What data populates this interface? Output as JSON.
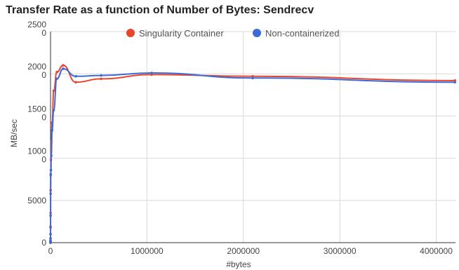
{
  "chart_data": {
    "type": "line",
    "title": "Transfer Rate as a function of Number of Bytes: Sendrecv",
    "xlabel": "#bytes",
    "ylabel": "MB/sec",
    "xlim": [
      0,
      4200000
    ],
    "ylim": [
      0,
      25000
    ],
    "x_ticks": [
      0,
      1000000,
      2000000,
      3000000,
      4000000
    ],
    "x_tick_labels": [
      "0",
      "1000000",
      "2000000",
      "3000000",
      "4000000"
    ],
    "y_ticks": [
      0,
      5000,
      10000,
      15000,
      20000,
      25000
    ],
    "y_tick_labels": [
      [
        "0",
        ""
      ],
      [
        "5000",
        ""
      ],
      [
        "1000",
        "0"
      ],
      [
        "1500",
        "0"
      ],
      [
        "2000",
        "0"
      ],
      [
        "2500",
        "0"
      ]
    ],
    "grid": true,
    "legend_position": "top",
    "series": [
      {
        "name": "Singularity Container",
        "color": "#e8472d",
        "x": [
          0,
          1,
          2,
          4,
          8,
          16,
          32,
          64,
          128,
          256,
          512,
          1024,
          2048,
          4096,
          8192,
          16384,
          32768,
          65536,
          131072,
          262144,
          524288,
          1048576,
          2097152,
          4194304
        ],
        "y": [
          0,
          5,
          15,
          30,
          60,
          120,
          250,
          500,
          1000,
          1900,
          3500,
          6200,
          8100,
          9800,
          12000,
          14200,
          18000,
          20200,
          21000,
          19000,
          19400,
          19900,
          19700,
          19200
        ]
      },
      {
        "name": "Non-containerized",
        "color": "#3d6ad6",
        "x": [
          0,
          1,
          2,
          4,
          8,
          16,
          32,
          64,
          128,
          256,
          512,
          1024,
          2048,
          4096,
          8192,
          16384,
          32768,
          65536,
          131072,
          262144,
          524288,
          1048576,
          2097152,
          4194304
        ],
        "y": [
          0,
          5,
          15,
          30,
          60,
          120,
          250,
          500,
          1000,
          1800,
          3200,
          5800,
          8000,
          8600,
          10300,
          13300,
          15700,
          19400,
          20600,
          19700,
          19800,
          20100,
          19500,
          19000
        ]
      }
    ]
  }
}
